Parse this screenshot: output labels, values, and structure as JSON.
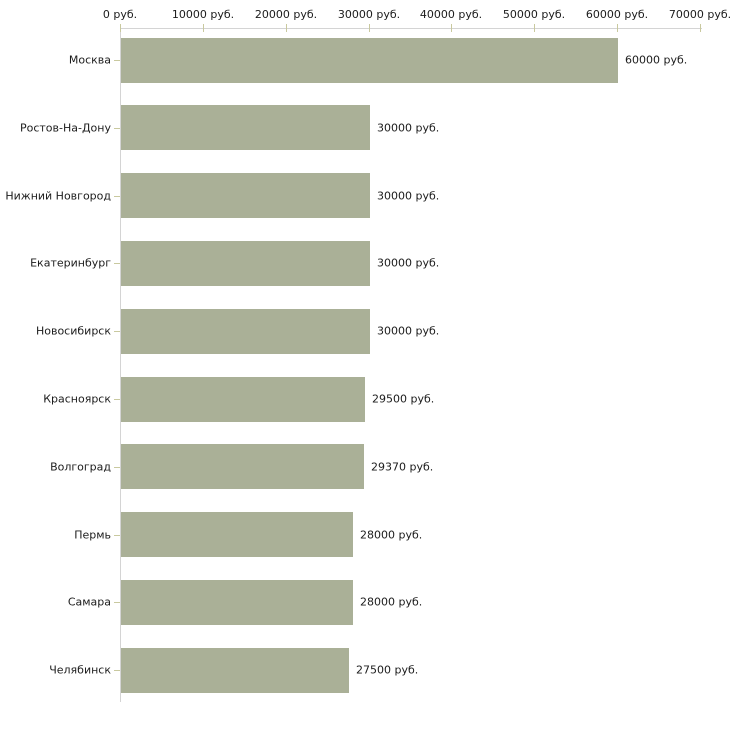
{
  "chart_data": {
    "type": "bar",
    "orientation": "horizontal",
    "title": "",
    "xlabel": "",
    "ylabel": "",
    "unit": "руб.",
    "categories": [
      "Москва",
      "Ростов-На-Дону",
      "Нижний Новгород",
      "Екатеринбург",
      "Новосибирск",
      "Красноярск",
      "Волгоград",
      "Пермь",
      "Самара",
      "Челябинск"
    ],
    "values": [
      60000,
      30000,
      30000,
      30000,
      30000,
      29500,
      29370,
      28000,
      28000,
      27500
    ],
    "value_labels": [
      "60000 руб.",
      "30000 руб.",
      "30000 руб.",
      "30000 руб.",
      "30000 руб.",
      "29500 руб.",
      "29370 руб.",
      "28000 руб.",
      "28000 руб.",
      "27500 руб."
    ],
    "xlim": [
      0,
      70000
    ],
    "x_ticks": [
      0,
      10000,
      20000,
      30000,
      40000,
      50000,
      60000,
      70000
    ],
    "x_tick_labels": [
      "0 руб.",
      "10000 руб.",
      "20000 руб.",
      "30000 руб.",
      "40000 руб.",
      "50000 руб.",
      "60000 руб.",
      "70000 руб."
    ],
    "grid": false,
    "legend": false,
    "colors": {
      "bar": "#aab097",
      "axis_line": "#d4d4d4",
      "tick": "#c9c99f",
      "text": "#1c1c1c",
      "background": "#ffffff"
    }
  }
}
